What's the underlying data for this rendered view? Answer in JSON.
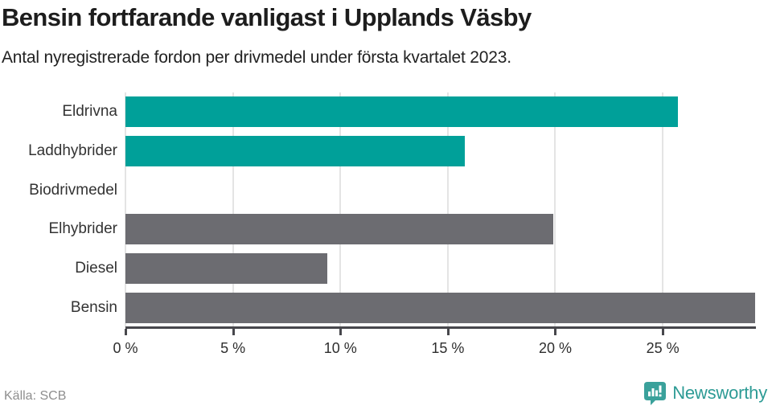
{
  "header": {
    "title": "Bensin fortfarande vanligast i Upplands Väsby",
    "subtitle": "Antal nyregistrerade fordon per drivmedel under första kvartalet 2023."
  },
  "chart_data": {
    "type": "bar",
    "orientation": "horizontal",
    "title": "Bensin fortfarande vanligast i Upplands Väsby",
    "subtitle": "Antal nyregistrerade fordon per drivmedel under första kvartalet 2023.",
    "categories": [
      "Eldrivna",
      "Laddhybrider",
      "Biodrivmedel",
      "Elhybrider",
      "Diesel",
      "Bensin"
    ],
    "values": [
      25.7,
      15.8,
      0,
      19.9,
      9.4,
      29.3
    ],
    "bar_colors": [
      "#00a099",
      "#00a099",
      "#00a099",
      "#6c6c71",
      "#6c6c71",
      "#6c6c71"
    ],
    "xlabel": "",
    "ylabel": "",
    "xlim": [
      0,
      29.3
    ],
    "x_ticks": [
      0,
      5,
      10,
      15,
      20,
      25
    ],
    "x_tick_suffix": " %",
    "grid": true,
    "legend": false
  },
  "footer": {
    "source": "Källa: SCB",
    "brand": "Newsworthy"
  },
  "colors": {
    "accent_teal": "#00a099",
    "neutral_gray": "#6c6c71",
    "gridline": "#e4e4e4",
    "axis": "#47474c",
    "brand_teal": "#3aa19b"
  }
}
